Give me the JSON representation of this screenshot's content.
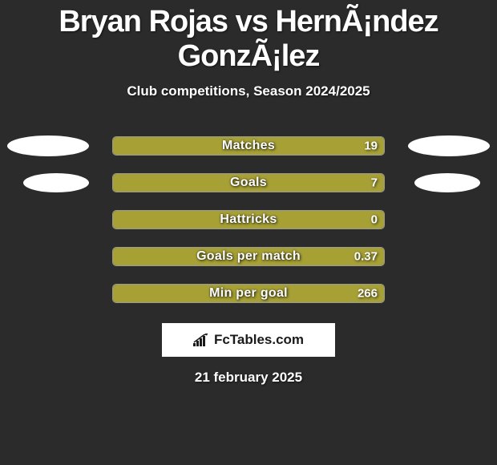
{
  "title": "Bryan Rojas vs HernÃ¡ndez GonzÃ¡lez",
  "subtitle": "Club competitions, Season 2024/2025",
  "date": "21 february 2025",
  "logo_text": "FcTables.com",
  "colors": {
    "background": "#2b2b2b",
    "bar_fill": "#a6a035",
    "bar_bg": "#3a3a3a",
    "bar_border": "#999999",
    "ellipse": "#ffffff",
    "text": "#ffffff",
    "logo_bg": "#ffffff",
    "logo_text": "#1a1a1a"
  },
  "stats": [
    {
      "label": "Matches",
      "value": "19",
      "fill_pct": 100,
      "show_left_ellipse": true,
      "show_right_ellipse": true,
      "ellipse_class": ""
    },
    {
      "label": "Goals",
      "value": "7",
      "fill_pct": 100,
      "show_left_ellipse": true,
      "show_right_ellipse": true,
      "ellipse_class": "r2"
    },
    {
      "label": "Hattricks",
      "value": "0",
      "fill_pct": 100,
      "show_left_ellipse": false,
      "show_right_ellipse": false,
      "ellipse_class": ""
    },
    {
      "label": "Goals per match",
      "value": "0.37",
      "fill_pct": 100,
      "show_left_ellipse": false,
      "show_right_ellipse": false,
      "ellipse_class": ""
    },
    {
      "label": "Min per goal",
      "value": "266",
      "fill_pct": 100,
      "show_left_ellipse": false,
      "show_right_ellipse": false,
      "ellipse_class": ""
    }
  ]
}
